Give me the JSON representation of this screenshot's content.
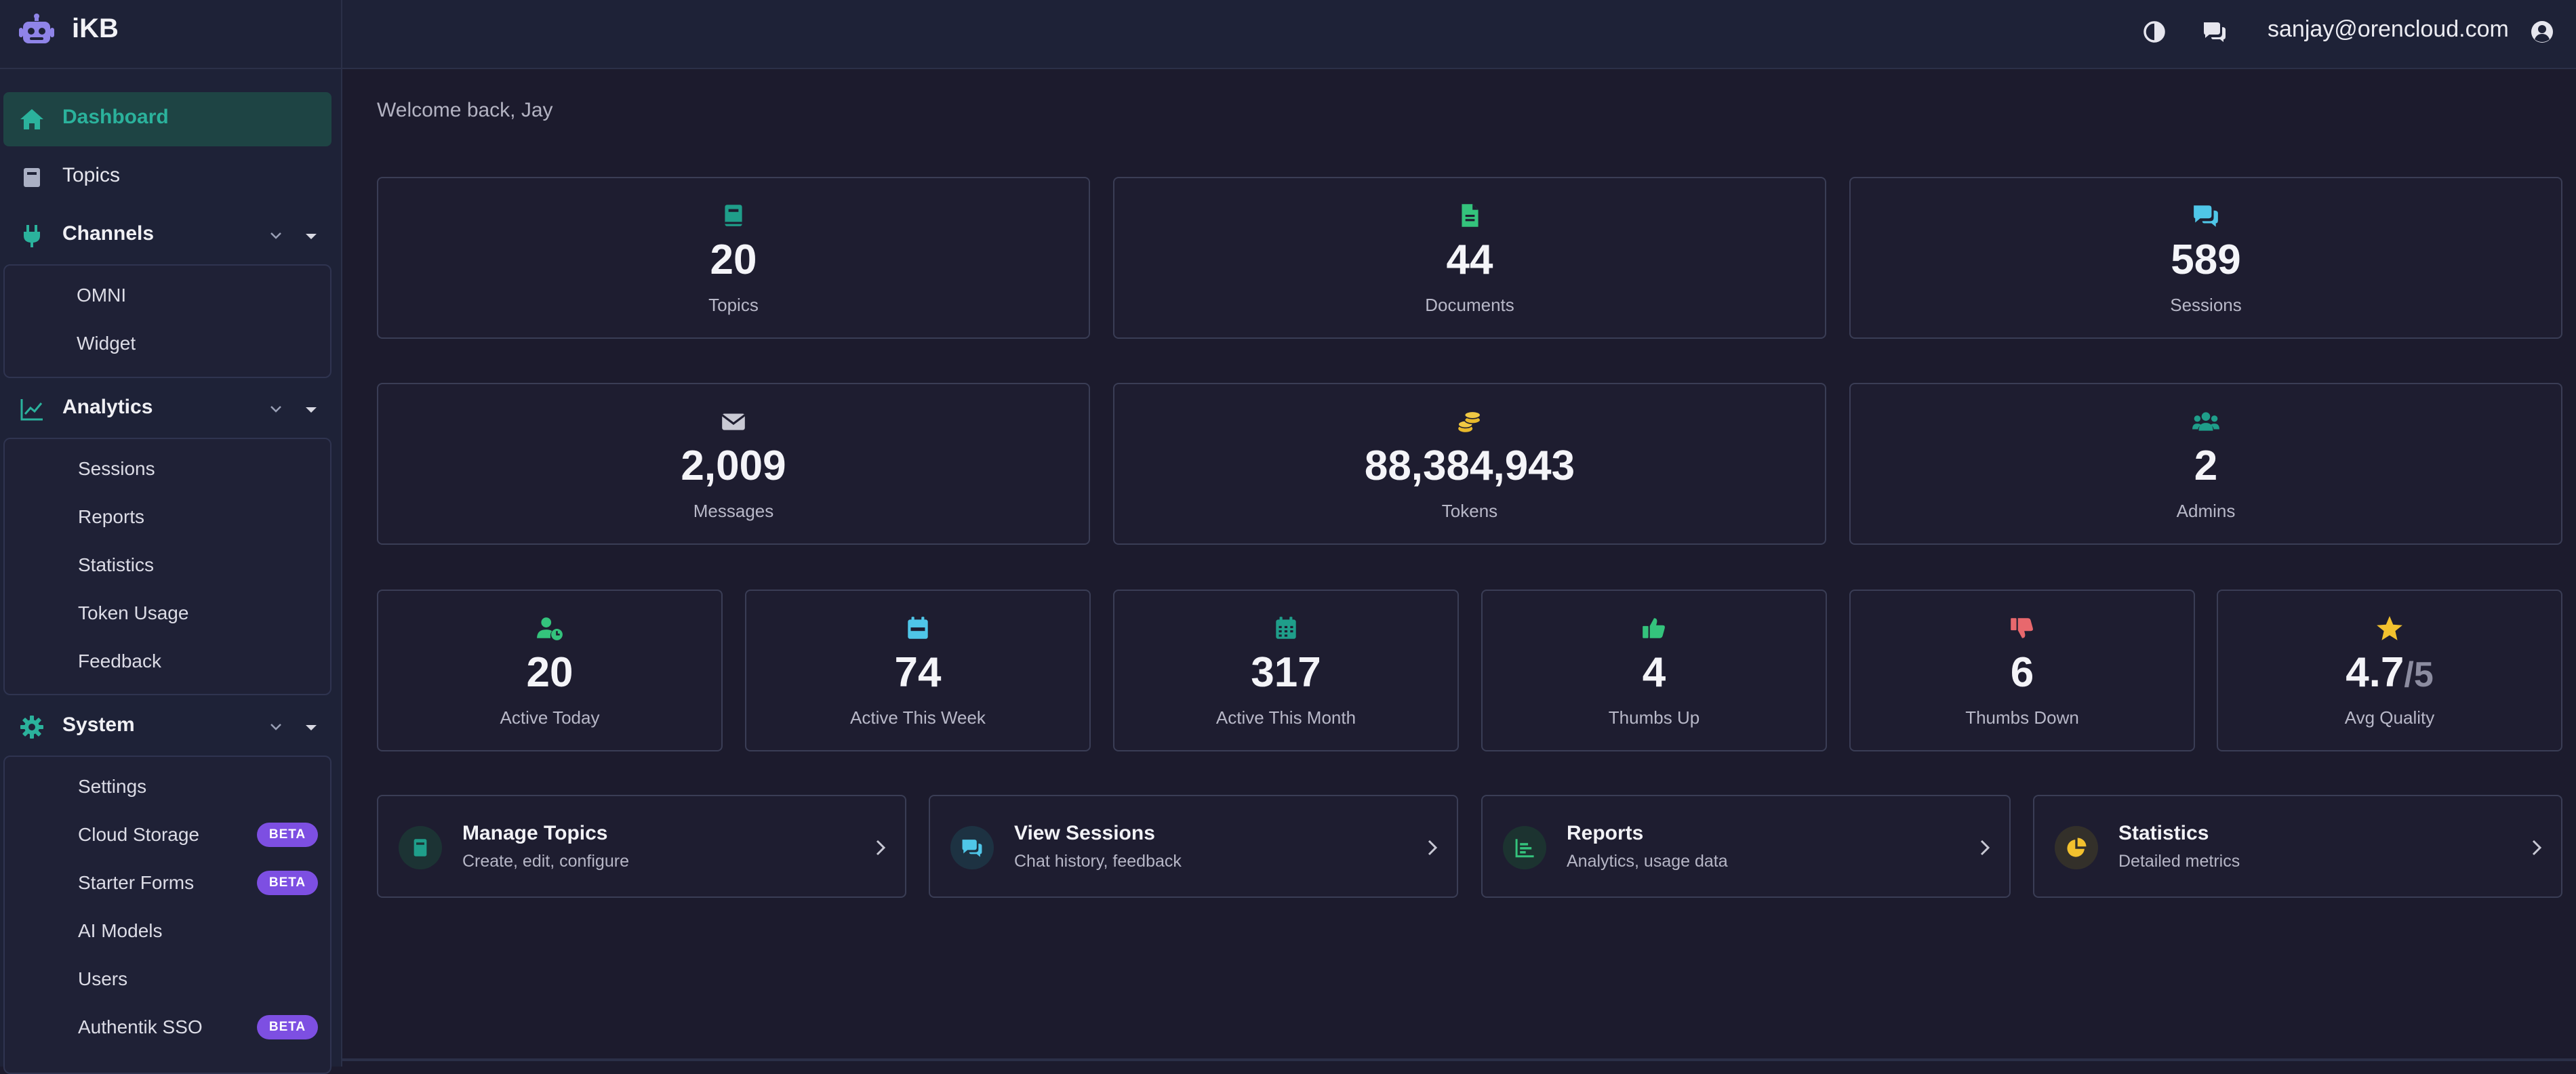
{
  "brand": {
    "name": "iKB"
  },
  "topbar": {
    "email": "sanjay@orencloud.com"
  },
  "welcome": "Welcome back, Jay",
  "sidebar": {
    "dashboard": "Dashboard",
    "topics": "Topics",
    "channels": {
      "label": "Channels",
      "items": [
        "OMNI",
        "Widget"
      ]
    },
    "analytics": {
      "label": "Analytics",
      "items": [
        "Sessions",
        "Reports",
        "Statistics",
        "Token Usage",
        "Feedback"
      ]
    },
    "system": {
      "label": "System",
      "items": [
        {
          "label": "Settings",
          "badge": ""
        },
        {
          "label": "Cloud Storage",
          "badge": "BETA"
        },
        {
          "label": "Starter Forms",
          "badge": "BETA"
        },
        {
          "label": "AI Models",
          "badge": ""
        },
        {
          "label": "Users",
          "badge": ""
        },
        {
          "label": "Authentik SSO",
          "badge": "BETA"
        }
      ]
    }
  },
  "stats": {
    "topics": {
      "value": "20",
      "label": "Topics",
      "icon": "book-icon",
      "color": "#1f9e8a"
    },
    "documents": {
      "value": "44",
      "label": "Documents",
      "icon": "file-icon",
      "color": "#34c37c"
    },
    "sessions": {
      "value": "589",
      "label": "Sessions",
      "icon": "chat-icon",
      "color": "#4fc6e8"
    },
    "messages": {
      "value": "2,009",
      "label": "Messages",
      "icon": "envelope-icon",
      "color": "#c9c9d4"
    },
    "tokens": {
      "value": "88,384,943",
      "label": "Tokens",
      "icon": "coins-icon",
      "color": "#e9b92b"
    },
    "admins": {
      "value": "2",
      "label": "Admins",
      "icon": "users-icon",
      "color": "#1f9e8a"
    },
    "active_today": {
      "value": "20",
      "label": "Active Today",
      "icon": "user-clock-icon",
      "color": "#34c37c"
    },
    "active_week": {
      "value": "74",
      "label": "Active This Week",
      "icon": "calendar-week-icon",
      "color": "#4fc6e8"
    },
    "active_month": {
      "value": "317",
      "label": "Active This Month",
      "icon": "calendar-icon",
      "color": "#1f9e8a"
    },
    "thumbs_up": {
      "value": "4",
      "label": "Thumbs Up",
      "icon": "thumbs-up-icon",
      "color": "#34c37c"
    },
    "thumbs_down": {
      "value": "6",
      "label": "Thumbs Down",
      "icon": "thumbs-down-icon",
      "color": "#e8686d"
    },
    "avg_quality": {
      "value": "4.7",
      "suffix": "/5",
      "label": "Avg Quality",
      "icon": "star-icon",
      "color": "#f2c12e"
    }
  },
  "quick_links": [
    {
      "title": "Manage Topics",
      "subtitle": "Create, edit, configure",
      "icon": "book-icon",
      "color": "#1f9e8a"
    },
    {
      "title": "View Sessions",
      "subtitle": "Chat history, feedback",
      "icon": "chat-icon",
      "color": "#4fc6e8"
    },
    {
      "title": "Reports",
      "subtitle": "Analytics, usage data",
      "icon": "chart-icon",
      "color": "#34c37c"
    },
    {
      "title": "Statistics",
      "subtitle": "Detailed metrics",
      "icon": "pie-chart-icon",
      "color": "#f2c12e"
    }
  ]
}
